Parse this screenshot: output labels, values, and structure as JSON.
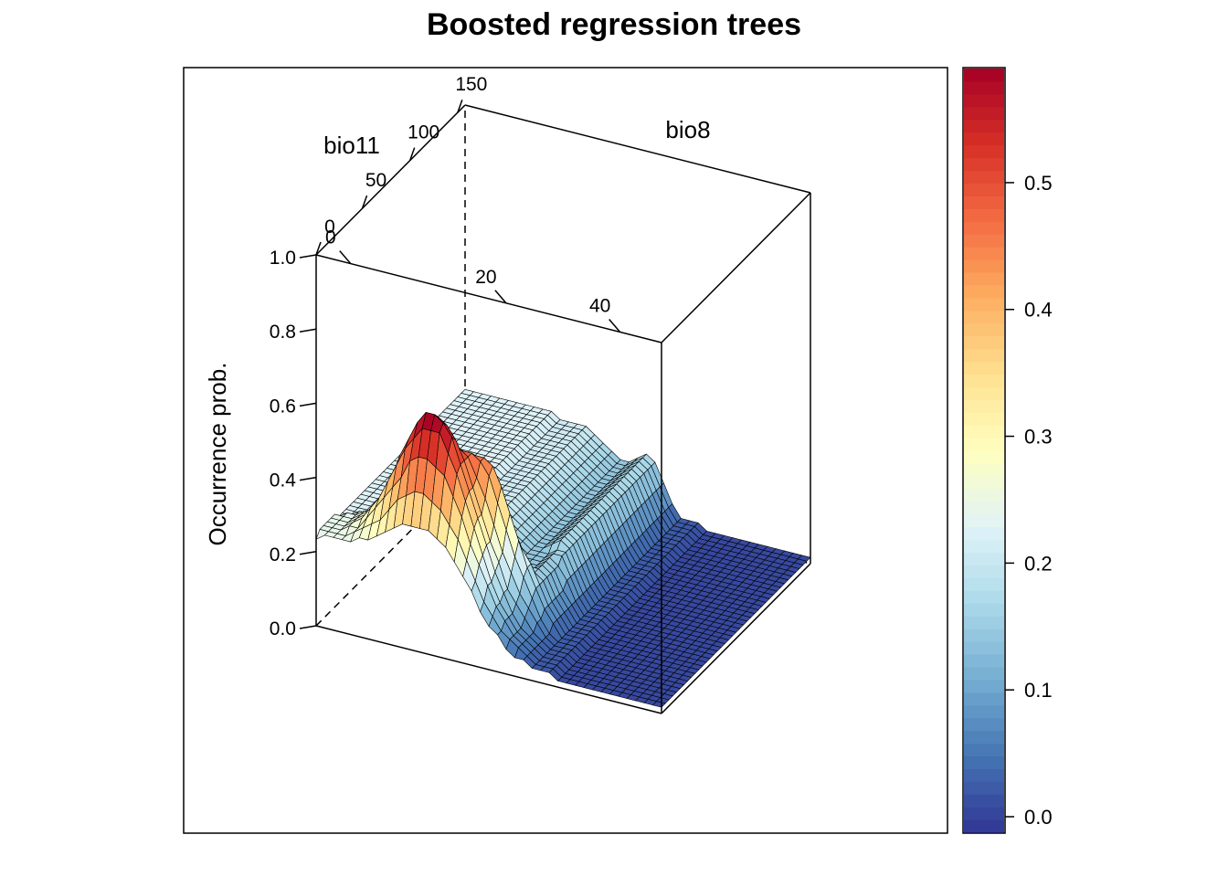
{
  "chart_data": {
    "type": "surface",
    "title": "Boosted regression trees",
    "zlabel": "Occurrence prob.",
    "xlabel": "bio8",
    "ylabel": "bio11",
    "x_ticks": [
      "0",
      "50",
      "100",
      "150"
    ],
    "y_ticks": [
      "0",
      "20",
      "40"
    ],
    "z_ticks": [
      "0.0",
      "0.2",
      "0.4",
      "0.6",
      "0.8",
      "1.0"
    ],
    "zlim": [
      0,
      1
    ],
    "colorbar": {
      "ticks": [
        "0.0",
        "0.1",
        "0.2",
        "0.3",
        "0.4",
        "0.5"
      ],
      "range": [
        0,
        0.59
      ],
      "palette": [
        "#313695",
        "#4575b4",
        "#74add1",
        "#abd9e9",
        "#e0f3f8",
        "#ffffbf",
        "#fee090",
        "#fdae61",
        "#f46d43",
        "#d73027",
        "#a50026"
      ]
    },
    "surface_description": {
      "bio8_range": [
        0,
        160
      ],
      "bio11_range": [
        -5,
        45
      ],
      "levels": {
        "low_bio8_high_bio11": 0.24,
        "low_bio8_low_bio11": 0.02,
        "high_bio8_low_bio11": 0.03,
        "high_bio8_high_bio11": 0.23,
        "peak": 0.57
      }
    }
  }
}
